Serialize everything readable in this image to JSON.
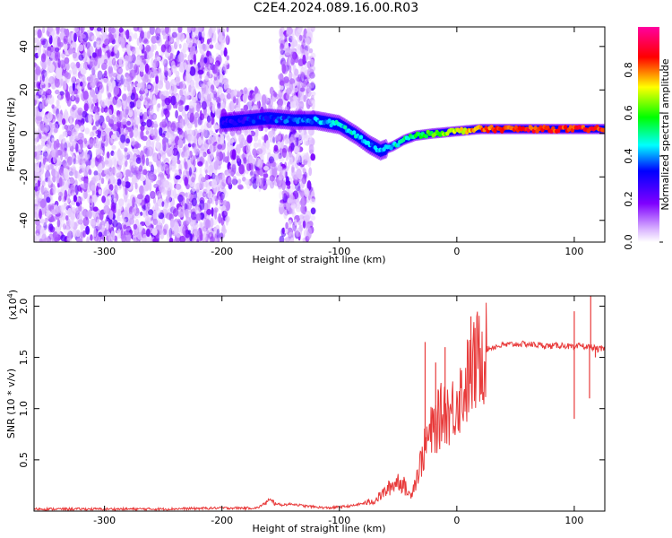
{
  "title": "C2E4.2024.089.16.00.R03",
  "chart_data": [
    {
      "type": "heatmap",
      "xlabel": "Height of straight line (km)",
      "ylabel": "Frequency (Hz)",
      "xlim": [
        -360,
        126
      ],
      "ylim": [
        -50,
        49
      ],
      "xticks": [
        -300,
        -200,
        -100,
        0,
        100
      ],
      "yticks": [
        -40,
        -20,
        0,
        20,
        40
      ],
      "colorbar": {
        "label": "Normalized spectral amplitude",
        "range": [
          0.0,
          1.0
        ],
        "ticks": [
          "0.0",
          "0.2",
          "0.4",
          "0.6",
          "0.8"
        ],
        "colors": [
          "#ffffff",
          "#d9b3ff",
          "#7f00ff",
          "#0000ff",
          "#00ffff",
          "#00ff00",
          "#ffff00",
          "#ff0000",
          "#ff00a0"
        ]
      },
      "ridge": {
        "x": [
          -200,
          -180,
          -160,
          -140,
          -120,
          -100,
          -85,
          -75,
          -65,
          -55,
          -45,
          -35,
          -20,
          0,
          20,
          60,
          100,
          126
        ],
        "y": [
          5,
          6,
          7,
          6,
          6,
          4,
          -1,
          -5,
          -8,
          -6,
          -3,
          -1,
          0,
          1,
          2,
          2,
          2,
          2
        ],
        "amplitude": [
          0.3,
          0.3,
          0.35,
          0.35,
          0.4,
          0.45,
          0.45,
          0.4,
          0.4,
          0.45,
          0.5,
          0.55,
          0.6,
          0.7,
          0.8,
          0.85,
          0.85,
          0.85
        ]
      },
      "noise_regions": [
        {
          "x": [
            -360,
            -195
          ],
          "y": [
            -50,
            49
          ]
        },
        {
          "x": [
            -150,
            -122
          ],
          "y": [
            -50,
            49
          ]
        },
        {
          "x": [
            -195,
            -150
          ],
          "y": [
            -25,
            20
          ]
        }
      ]
    },
    {
      "type": "line",
      "xlabel": "Height of straight line (km)",
      "ylabel": "SNR (10 * v/v)",
      "multiplier": "(x10",
      "multiplier_exp": "4",
      "xlim": [
        -360,
        126
      ],
      "ylim": [
        0,
        2.1
      ],
      "xticks": [
        -300,
        -200,
        -100,
        0,
        100
      ],
      "yticks": [
        "0.5",
        "1.0",
        "1.5",
        "2.0"
      ],
      "color": "#e83a3a",
      "series": [
        {
          "x": [
            -360,
            -300,
            -250,
            -200,
            -170,
            -160,
            -150,
            -140,
            -130,
            -110,
            -90,
            -70,
            -60,
            -55,
            -50,
            -45,
            -40,
            -35,
            -30,
            -25,
            -20,
            -15,
            -10,
            -5,
            0,
            5,
            10,
            15,
            20,
            30,
            40,
            50,
            60,
            70,
            80,
            90,
            98,
            100,
            105,
            110,
            115,
            120,
            126
          ],
          "y": [
            0.02,
            0.02,
            0.02,
            0.03,
            0.03,
            0.1,
            0.06,
            0.07,
            0.05,
            0.03,
            0.05,
            0.1,
            0.2,
            0.25,
            0.3,
            0.25,
            0.15,
            0.3,
            0.5,
            0.7,
            0.8,
            0.9,
            1.0,
            0.95,
            1.1,
            1.15,
            1.3,
            1.4,
            1.55,
            1.6,
            1.62,
            1.63,
            1.63,
            1.62,
            1.61,
            1.62,
            1.6,
            1.58,
            1.62,
            1.6,
            1.6,
            1.58,
            1.58
          ]
        }
      ],
      "spikes": [
        {
          "x": -27,
          "y": 1.65
        },
        {
          "x": -18,
          "y": 1.45
        },
        {
          "x": -10,
          "y": 1.6
        },
        {
          "x": 12,
          "y": 1.9
        },
        {
          "x": 100,
          "y": 0.9
        },
        {
          "x": 100,
          "y": 1.95
        },
        {
          "x": 113,
          "y": 1.1
        },
        {
          "x": 114,
          "y": 2.1
        },
        {
          "x": 118,
          "y": 1.5
        }
      ]
    }
  ]
}
